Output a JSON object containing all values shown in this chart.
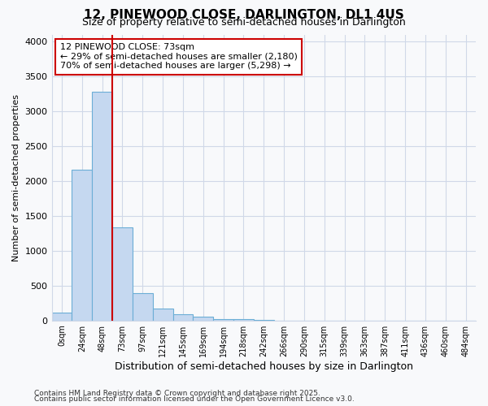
{
  "title_line1": "12, PINEWOOD CLOSE, DARLINGTON, DL1 4US",
  "title_line2": "Size of property relative to semi-detached houses in Darlington",
  "xlabel": "Distribution of semi-detached houses by size in Darlington",
  "ylabel": "Number of semi-detached properties",
  "footnote1": "Contains HM Land Registry data © Crown copyright and database right 2025.",
  "footnote2": "Contains public sector information licensed under the Open Government Licence v3.0.",
  "annotation_title": "12 PINEWOOD CLOSE: 73sqm",
  "annotation_line1": "← 29% of semi-detached houses are smaller (2,180)",
  "annotation_line2": "70% of semi-detached houses are larger (5,298) →",
  "categories": [
    "0sqm",
    "24sqm",
    "48sqm",
    "73sqm",
    "97sqm",
    "121sqm",
    "145sqm",
    "169sqm",
    "194sqm",
    "218sqm",
    "242sqm",
    "266sqm",
    "290sqm",
    "315sqm",
    "339sqm",
    "363sqm",
    "387sqm",
    "411sqm",
    "436sqm",
    "460sqm",
    "484sqm"
  ],
  "values": [
    110,
    2160,
    3280,
    1330,
    390,
    170,
    95,
    50,
    25,
    15,
    5,
    2,
    1,
    0,
    0,
    0,
    0,
    0,
    0,
    0,
    0
  ],
  "bar_color": "#c5d8f0",
  "bar_edge_color": "#6baed6",
  "vline_color": "#cc0000",
  "vline_index": 3,
  "background_color": "#f8f9fb",
  "plot_bg_color": "#f8f9fb",
  "grid_color": "#d0d8e8",
  "ylim": [
    0,
    4100
  ],
  "yticks": [
    0,
    500,
    1000,
    1500,
    2000,
    2500,
    3000,
    3500,
    4000
  ]
}
